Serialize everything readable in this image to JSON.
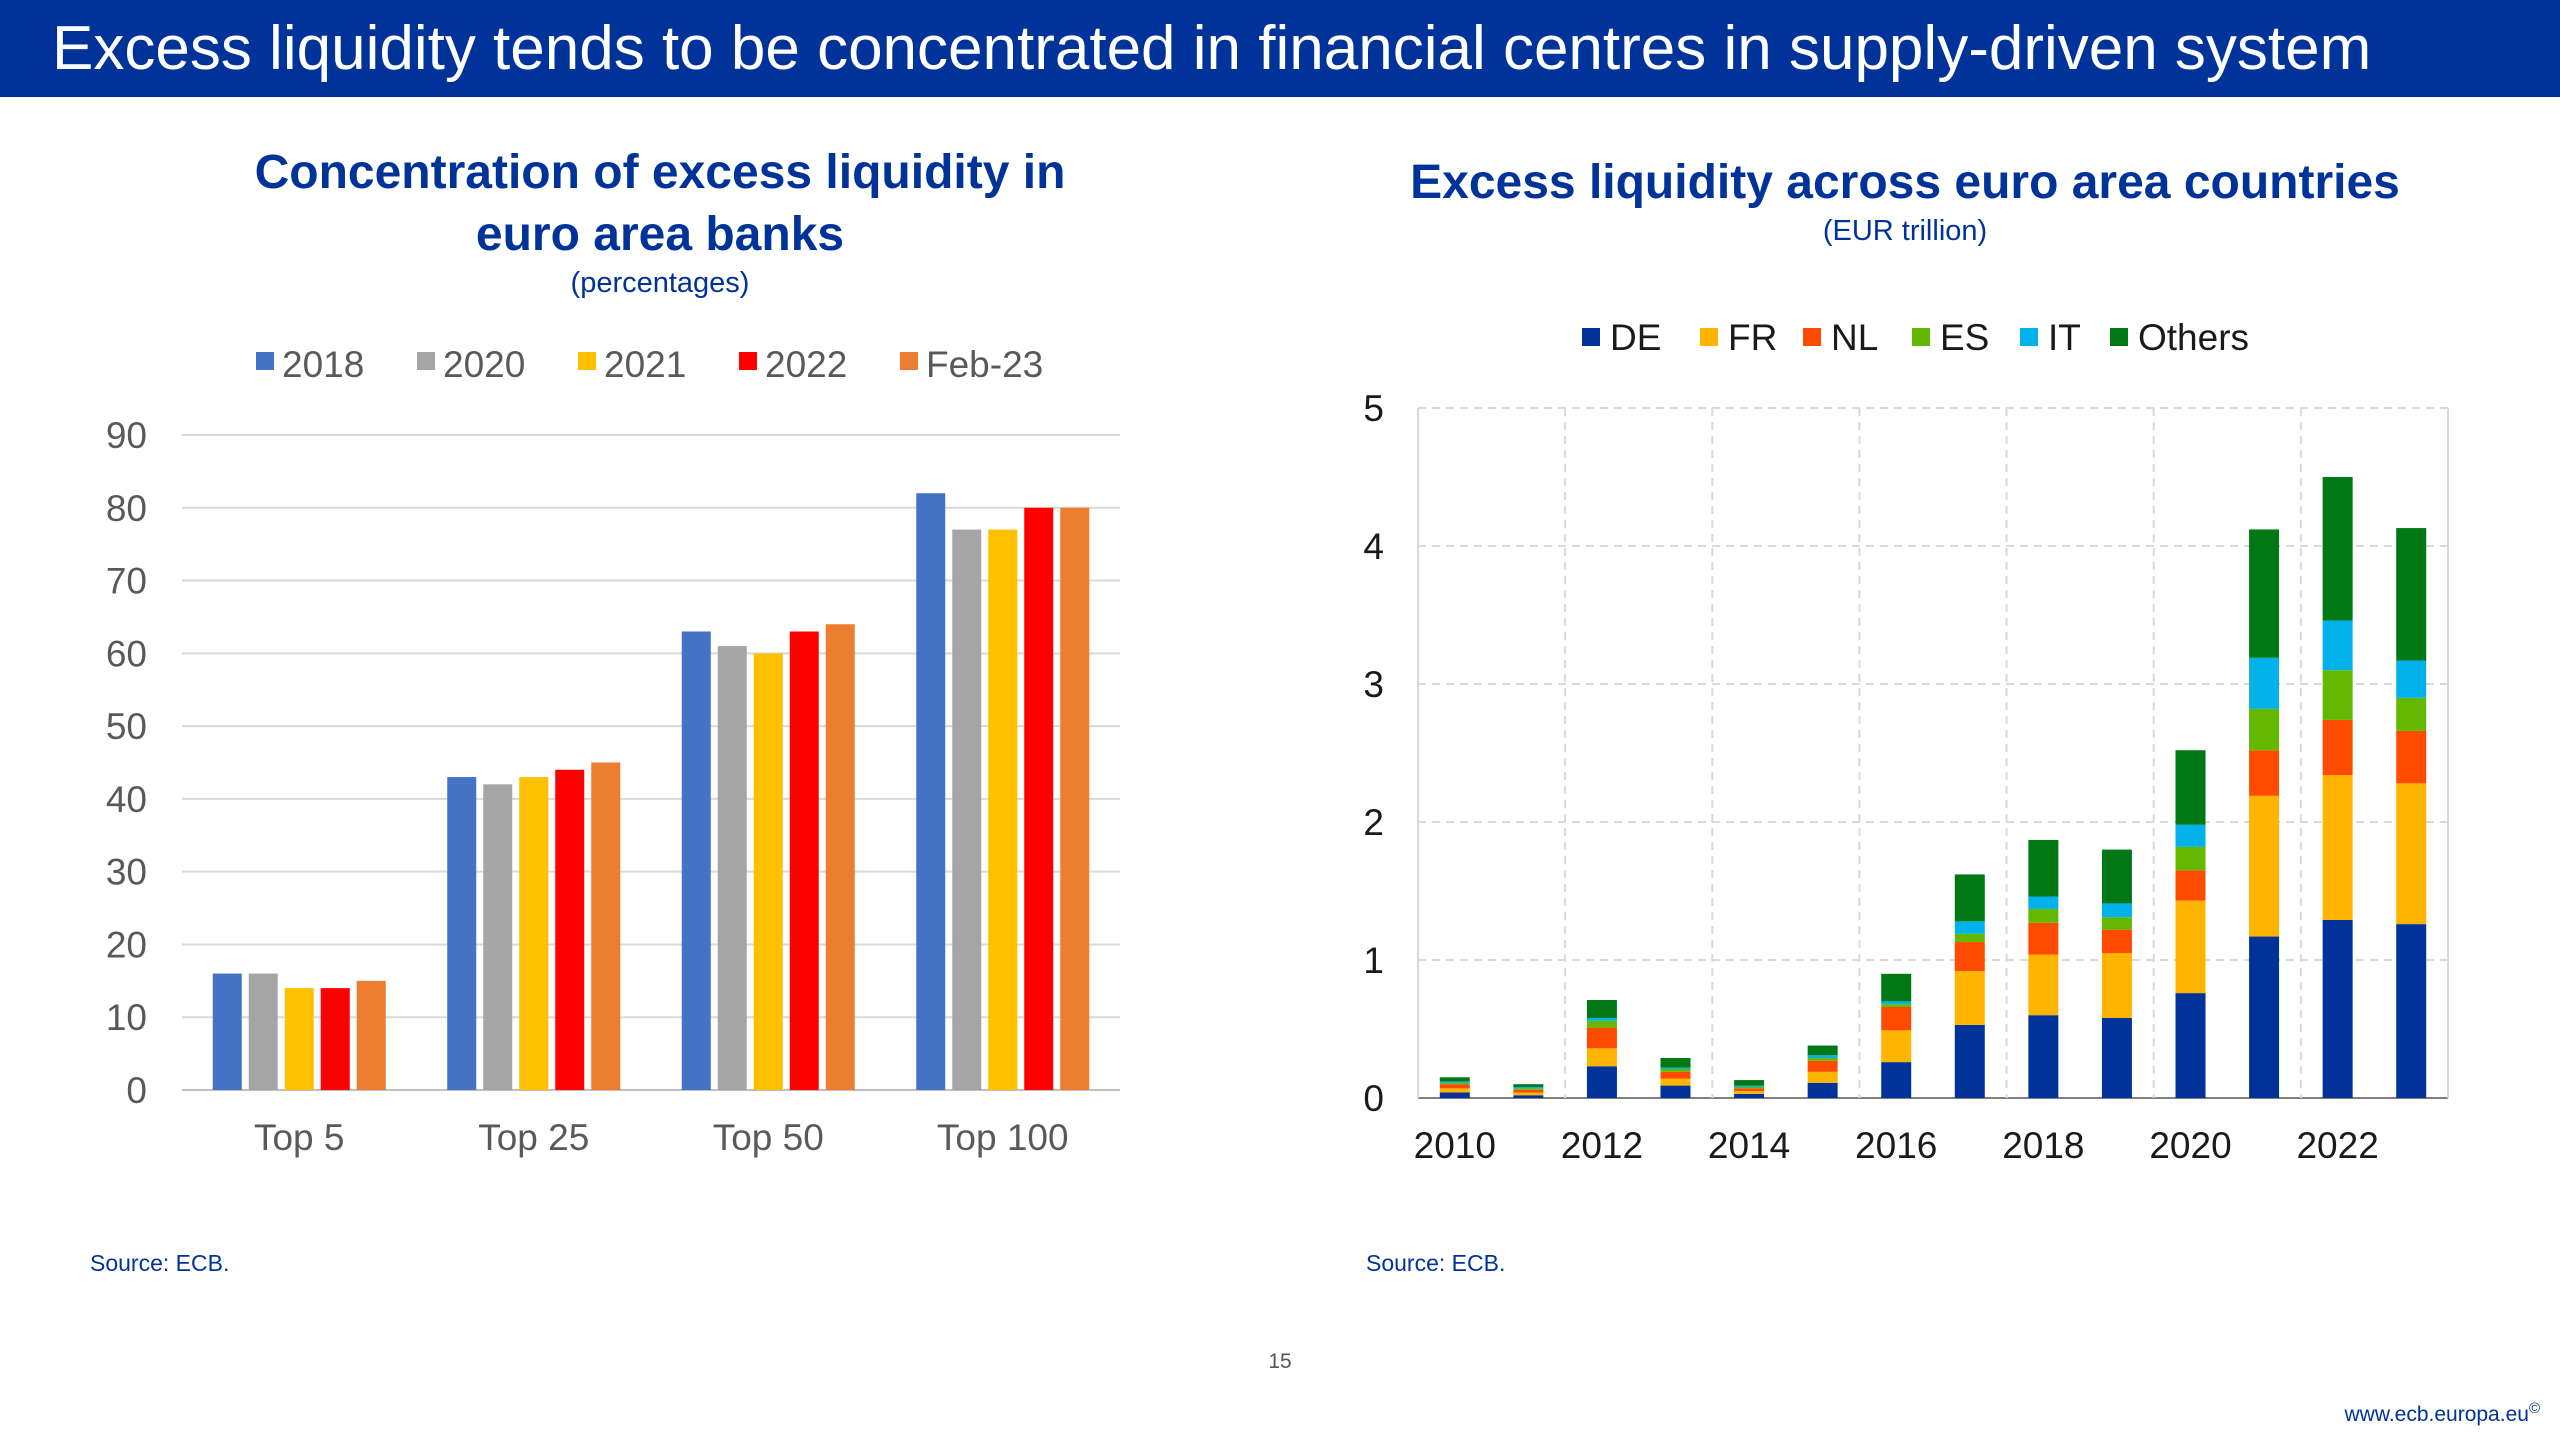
{
  "slide": {
    "title": "Excess liquidity tends to be concentrated in financial centres in supply-driven system",
    "page_number": "15",
    "footer_url": "www.ecb.europa.eu",
    "footer_symbol": "©"
  },
  "colors": {
    "brand": "#003399",
    "gridline": "#d9d9d9",
    "axis_text": "#595959"
  },
  "chart_data": [
    {
      "type": "bar",
      "title_line1": "Concentration of excess liquidity in",
      "title_line2": "euro area banks",
      "subtitle": "(percentages)",
      "source": "Source: ECB.",
      "categories": [
        "Top 5",
        "Top 25",
        "Top 50",
        "Top 100"
      ],
      "series": [
        {
          "name": "2018",
          "color": "#4472c4",
          "values": [
            16,
            43,
            63,
            82
          ]
        },
        {
          "name": "2020",
          "color": "#a5a5a5",
          "values": [
            16,
            42,
            61,
            77
          ]
        },
        {
          "name": "2021",
          "color": "#ffc000",
          "values": [
            14,
            43,
            60,
            77
          ]
        },
        {
          "name": "2022",
          "color": "#ff0000",
          "values": [
            14,
            44,
            63,
            80
          ]
        },
        {
          "name": "Feb-23",
          "color": "#ed7d31",
          "values": [
            15,
            45,
            64,
            80
          ]
        }
      ],
      "ylim": [
        0,
        90
      ],
      "yticks": [
        0,
        10,
        20,
        30,
        40,
        50,
        60,
        70,
        80,
        90
      ],
      "grid": true,
      "legend": "top"
    },
    {
      "type": "bar",
      "stacked": true,
      "title": "Excess liquidity across euro area countries",
      "subtitle": "(EUR trillion)",
      "source": "Source: ECB.",
      "x": [
        2010,
        2011,
        2012,
        2013,
        2014,
        2015,
        2016,
        2017,
        2018,
        2019,
        2020,
        2021,
        2022,
        2023
      ],
      "xtick_labels": [
        "2010",
        "2012",
        "2014",
        "2016",
        "2018",
        "2020",
        "2022"
      ],
      "xtick_years": [
        2010,
        2012,
        2014,
        2016,
        2018,
        2020,
        2022
      ],
      "series": [
        {
          "name": "DE",
          "color": "#003399",
          "values": [
            0.04,
            0.02,
            0.23,
            0.09,
            0.03,
            0.11,
            0.26,
            0.53,
            0.6,
            0.58,
            0.76,
            1.17,
            1.29,
            1.26
          ]
        },
        {
          "name": "FR",
          "color": "#ffb400",
          "values": [
            0.03,
            0.02,
            0.13,
            0.05,
            0.02,
            0.08,
            0.23,
            0.39,
            0.44,
            0.47,
            0.67,
            1.02,
            1.05,
            1.02
          ]
        },
        {
          "name": "NL",
          "color": "#ff4b00",
          "values": [
            0.03,
            0.02,
            0.15,
            0.05,
            0.02,
            0.08,
            0.17,
            0.21,
            0.23,
            0.17,
            0.22,
            0.33,
            0.4,
            0.38
          ]
        },
        {
          "name": "ES",
          "color": "#65b800",
          "values": [
            0.01,
            0.01,
            0.05,
            0.02,
            0.01,
            0.02,
            0.02,
            0.06,
            0.1,
            0.09,
            0.17,
            0.3,
            0.36,
            0.24
          ]
        },
        {
          "name": "IT",
          "color": "#00b1ea",
          "values": [
            0.01,
            0.01,
            0.02,
            0.01,
            0.01,
            0.02,
            0.02,
            0.09,
            0.09,
            0.1,
            0.16,
            0.37,
            0.36,
            0.27
          ]
        },
        {
          "name": "Others",
          "color": "#007816",
          "values": [
            0.03,
            0.02,
            0.13,
            0.07,
            0.04,
            0.07,
            0.2,
            0.34,
            0.41,
            0.39,
            0.54,
            0.93,
            1.04,
            0.96
          ]
        }
      ],
      "ylim": [
        0,
        5
      ],
      "yticks": [
        0,
        1,
        2,
        3,
        4,
        5
      ],
      "grid": true,
      "legend": "top"
    }
  ]
}
